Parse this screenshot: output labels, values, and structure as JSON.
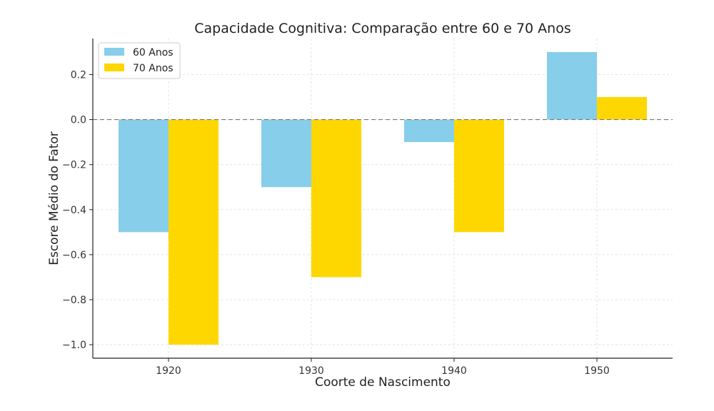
{
  "chart_data": {
    "type": "bar",
    "title": "Capacidade Cognitiva: Comparação entre 60 e 70 Anos",
    "xlabel": "Coorte de Nascimento",
    "ylabel": "Escore Médio do Fator",
    "categories": [
      "1920",
      "1930",
      "1940",
      "1950"
    ],
    "series": [
      {
        "name": "60 Anos",
        "values": [
          -0.5,
          -0.3,
          -0.1,
          0.3
        ],
        "color": "#87CEEB"
      },
      {
        "name": "70 Anos",
        "values": [
          -1.0,
          -0.7,
          -0.5,
          0.1
        ],
        "color": "#FFD700"
      }
    ],
    "ylim": [
      -1.06,
      0.36
    ],
    "yticks": [
      0.2,
      0.0,
      -0.2,
      -0.4,
      -0.6,
      -0.8,
      -1.0
    ],
    "ytick_labels": [
      "0.2",
      "0.0",
      "−0.2",
      "−0.4",
      "−0.6",
      "−0.8",
      "−1.0"
    ],
    "grid": true,
    "zero_line": "dashed",
    "legend_position": "top-left"
  }
}
